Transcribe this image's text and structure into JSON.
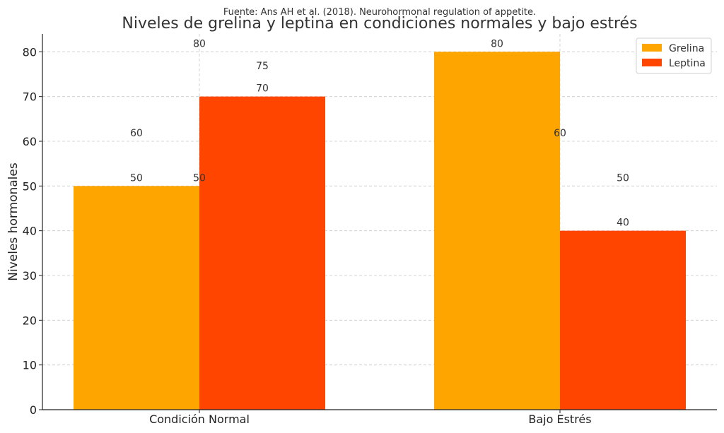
{
  "chart_data": {
    "type": "bar",
    "source_note": "Fuente: Ans AH et al. (2018). Neurohormonal regulation of appetite.",
    "title": "Niveles de grelina y leptina en condiciones normales y bajo estrés",
    "xlabel": "",
    "ylabel": "Niveles hormonales",
    "ylim": [
      0,
      84
    ],
    "yticks": [
      0,
      10,
      20,
      30,
      40,
      50,
      60,
      70,
      80
    ],
    "grid": true,
    "legend_position": "top-right",
    "categories": [
      "Condición Normal",
      "Bajo Estrés"
    ],
    "series": [
      {
        "name": "Grelina",
        "color": "#FFA500",
        "values": [
          50,
          80
        ]
      },
      {
        "name": "Leptina",
        "color": "#FF4500",
        "values": [
          70,
          40
        ]
      }
    ],
    "annotations": [
      {
        "category": "Condición Normal",
        "offset": -1,
        "value": 60,
        "label": "60"
      },
      {
        "category": "Condición Normal",
        "offset": 0,
        "value": 80,
        "label": "80"
      },
      {
        "category": "Condición Normal",
        "offset": 0,
        "value": 50,
        "label": "50"
      },
      {
        "category": "Condición Normal",
        "offset": 1,
        "value": 75,
        "label": "75"
      },
      {
        "category": "Bajo Estrés",
        "offset": 0,
        "value": 60,
        "label": "60"
      },
      {
        "category": "Bajo Estrés",
        "offset": 1,
        "value": 50,
        "label": "50"
      }
    ]
  }
}
